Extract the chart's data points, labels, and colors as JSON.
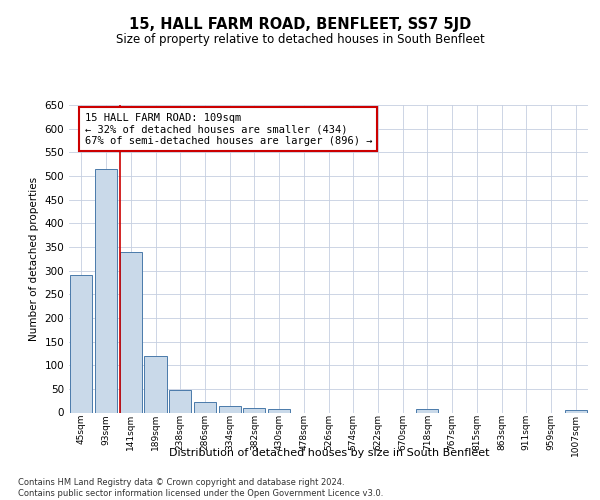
{
  "title": "15, HALL FARM ROAD, BENFLEET, SS7 5JD",
  "subtitle": "Size of property relative to detached houses in South Benfleet",
  "xlabel": "Distribution of detached houses by size in South Benfleet",
  "ylabel": "Number of detached properties",
  "bar_labels": [
    "45sqm",
    "93sqm",
    "141sqm",
    "189sqm",
    "238sqm",
    "286sqm",
    "334sqm",
    "382sqm",
    "430sqm",
    "478sqm",
    "526sqm",
    "574sqm",
    "622sqm",
    "670sqm",
    "718sqm",
    "767sqm",
    "815sqm",
    "863sqm",
    "911sqm",
    "959sqm",
    "1007sqm"
  ],
  "bar_values": [
    290,
    515,
    340,
    120,
    47,
    22,
    13,
    10,
    7,
    0,
    0,
    0,
    0,
    0,
    8,
    0,
    0,
    0,
    0,
    0,
    5
  ],
  "bar_color": "#c9d9e9",
  "bar_edge_color": "#4a7aaa",
  "ylim": [
    0,
    650
  ],
  "yticks": [
    0,
    50,
    100,
    150,
    200,
    250,
    300,
    350,
    400,
    450,
    500,
    550,
    600,
    650
  ],
  "vline_x_index": 1.55,
  "vline_color": "#cc0000",
  "annotation_text": "15 HALL FARM ROAD: 109sqm\n← 32% of detached houses are smaller (434)\n67% of semi-detached houses are larger (896) →",
  "annotation_box_color": "#ffffff",
  "annotation_box_edge": "#cc0000",
  "footer_text": "Contains HM Land Registry data © Crown copyright and database right 2024.\nContains public sector information licensed under the Open Government Licence v3.0.",
  "background_color": "#ffffff",
  "grid_color": "#c5cfe0"
}
